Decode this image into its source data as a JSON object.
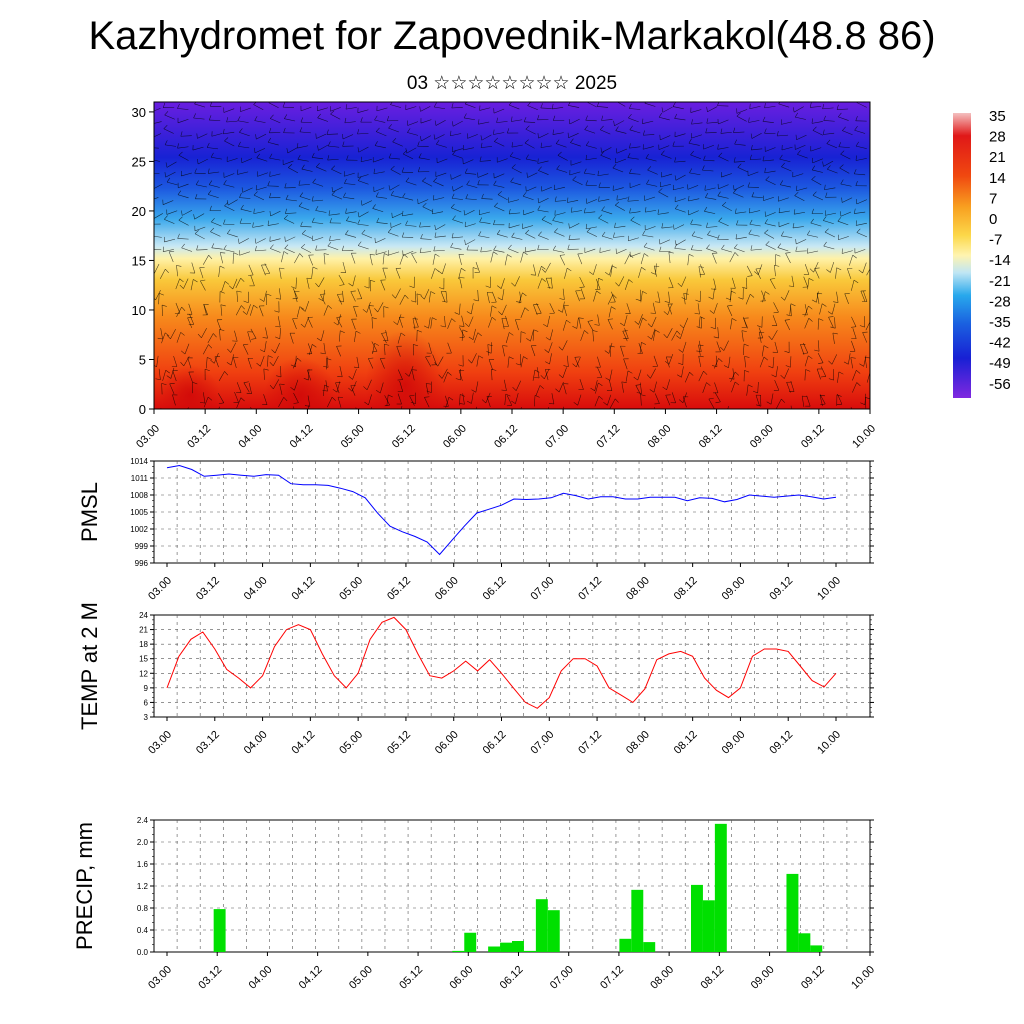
{
  "title": "Kazhydromet for Zapovednik-Markakol(48.8 86)",
  "subtitle": "03 ☆☆☆☆☆☆☆☆ 2025",
  "chart_data": [
    {
      "type": "heatmap",
      "ylim": [
        0,
        31
      ],
      "yticks": [
        0,
        5,
        10,
        15,
        20,
        25,
        30
      ],
      "xticks": [
        "03.00",
        "03.12",
        "04.00",
        "04.12",
        "05.00",
        "05.12",
        "06.00",
        "06.12",
        "07.00",
        "07.12",
        "08.00",
        "08.12",
        "09.00",
        "09.12",
        "10.00"
      ],
      "colorbar_labels": [
        "35",
        "28",
        "21",
        "14",
        "7",
        "0",
        "-7",
        "-14",
        "-21",
        "-28",
        "-35",
        "-42",
        "-49",
        "-56"
      ],
      "colors": {
        "warm": "#e02010",
        "mid": "#fff0a0",
        "cold": "#3010d0"
      },
      "wind_barbs": true
    },
    {
      "type": "line",
      "ylabel": "PMSL",
      "ylim": [
        996,
        1014
      ],
      "yticks": [
        "1014",
        "1011",
        "1008",
        "1005",
        "1002",
        "999",
        "996"
      ],
      "xticks": [
        "03.00",
        "03.12",
        "04.00",
        "04.12",
        "05.00",
        "05.12",
        "06.00",
        "06.12",
        "07.00",
        "07.12",
        "08.00",
        "08.12",
        "09.00",
        "09.12",
        "10.00"
      ],
      "color": "#0000ff",
      "values": [
        1012.8,
        1013.2,
        1012.5,
        1011.3,
        1011.5,
        1011.7,
        1011.5,
        1011.3,
        1011.6,
        1011.5,
        1010.0,
        1009.8,
        1009.8,
        1009.7,
        1009.2,
        1008.6,
        1007.5,
        1004.8,
        1002.5,
        1001.5,
        1000.7,
        999.7,
        997.5,
        1000.0,
        1002.5,
        1004.8,
        1005.5,
        1006.2,
        1007.3,
        1007.2,
        1007.3,
        1007.5,
        1008.3,
        1007.9,
        1007.3,
        1007.7,
        1007.7,
        1007.3,
        1007.3,
        1007.6,
        1007.6,
        1007.6,
        1007.0,
        1007.5,
        1007.4,
        1006.8,
        1007.2,
        1008.0,
        1007.8,
        1007.6,
        1007.8,
        1008.0,
        1007.7,
        1007.3,
        1007.6
      ]
    },
    {
      "type": "line",
      "ylabel": "TEMP at 2 M",
      "ylim": [
        3,
        24
      ],
      "yticks": [
        "24",
        "21",
        "18",
        "15",
        "12",
        "9",
        "6",
        "3"
      ],
      "xticks": [
        "03.00",
        "03.12",
        "04.00",
        "04.12",
        "05.00",
        "05.12",
        "06.00",
        "06.12",
        "07.00",
        "07.12",
        "08.00",
        "08.12",
        "09.00",
        "09.12",
        "10.00"
      ],
      "color": "#ff0000",
      "values": [
        9.0,
        15.5,
        19.0,
        20.5,
        17.0,
        12.8,
        11.0,
        9.0,
        11.5,
        17.5,
        21.0,
        22.0,
        21.0,
        16.0,
        11.5,
        9.0,
        12.0,
        19.0,
        22.5,
        23.5,
        21.0,
        16.0,
        11.5,
        11.0,
        12.5,
        14.5,
        12.5,
        14.8,
        12.0,
        9.0,
        6.0,
        4.8,
        7.0,
        12.5,
        15.0,
        15.0,
        13.5,
        9.0,
        7.5,
        6.0,
        8.8,
        14.8,
        16.0,
        16.5,
        15.5,
        11.0,
        8.5,
        7.0,
        9.0,
        15.5,
        17.0,
        17.0,
        16.5,
        13.5,
        10.5,
        9.2,
        12.0
      ]
    },
    {
      "type": "bar",
      "ylabel": "PRECIP, mm",
      "ylim": [
        0,
        2.4
      ],
      "yticks": [
        "2.4",
        "2.0",
        "1.6",
        "1.2",
        "0.8",
        "0.4",
        "0.0"
      ],
      "xticks": [
        "03.00",
        "03.12",
        "04.00",
        "04.12",
        "05.00",
        "05.12",
        "06.00",
        "06.12",
        "07.00",
        "07.12",
        "08.00",
        "08.12",
        "09.00",
        "09.12",
        "10.00"
      ],
      "color": "#00e000",
      "values": [
        0,
        0,
        0,
        0,
        0,
        0.78,
        0,
        0,
        0,
        0,
        0,
        0,
        0,
        0,
        0,
        0,
        0,
        0,
        0,
        0,
        0,
        0,
        0,
        0,
        0,
        0.02,
        0.35,
        0,
        0.1,
        0.17,
        0.2,
        0.02,
        0.96,
        0.76,
        0,
        0,
        0,
        0,
        0,
        0.24,
        1.13,
        0.18,
        0,
        0,
        0,
        1.22,
        0.94,
        2.33,
        0,
        0,
        0,
        0,
        0,
        1.42,
        0.34,
        0.12,
        0,
        0,
        0,
        0
      ]
    }
  ]
}
